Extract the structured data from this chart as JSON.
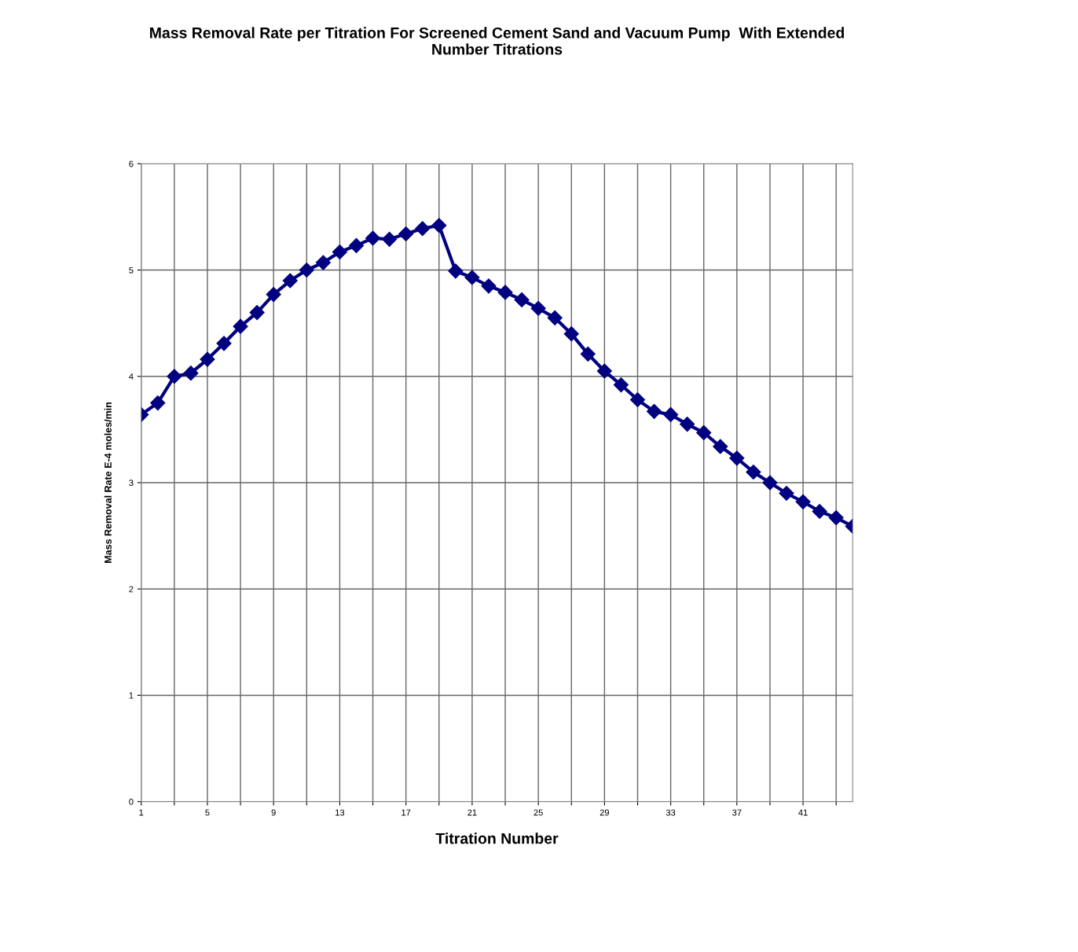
{
  "chart_data": {
    "type": "line",
    "title": "Mass Removal Rate per Titration For Screened Cement Sand and Vacuum Pump  With Extended\nNumber Titrations",
    "xlabel": "Titration Number",
    "ylabel": "Mass Removal Rate E-4 moles/min",
    "categories": [
      "1",
      null,
      null,
      null,
      "5",
      null,
      null,
      null,
      "9",
      null,
      null,
      null,
      "13",
      null,
      null,
      null,
      "17",
      null,
      null,
      null,
      "21",
      null,
      null,
      null,
      "25",
      null,
      null,
      null,
      "29",
      null,
      null,
      null,
      "33",
      null,
      null,
      null,
      "37",
      null,
      null,
      null,
      "41",
      null,
      null,
      null
    ],
    "series": [
      {
        "color": "#000080",
        "values": [
          3.64,
          3.75,
          4.0,
          4.03,
          4.16,
          4.31,
          4.47,
          4.6,
          4.77,
          4.9,
          5.0,
          5.07,
          5.17,
          5.23,
          5.3,
          5.29,
          5.34,
          5.39,
          5.42,
          4.99,
          4.93,
          4.85,
          4.79,
          4.72,
          4.64,
          4.55,
          4.4,
          4.21,
          4.05,
          3.92,
          3.78,
          3.67,
          3.64,
          3.55,
          3.47,
          3.34,
          3.23,
          3.1,
          3.0,
          2.9,
          2.82,
          2.73,
          2.67,
          2.59
        ]
      }
    ],
    "ylim": [
      0,
      6
    ],
    "yticks": [
      0,
      1,
      2,
      3,
      4,
      5,
      6
    ],
    "grid": true,
    "legend": false,
    "marker": "diamond",
    "line_style": "solid"
  }
}
